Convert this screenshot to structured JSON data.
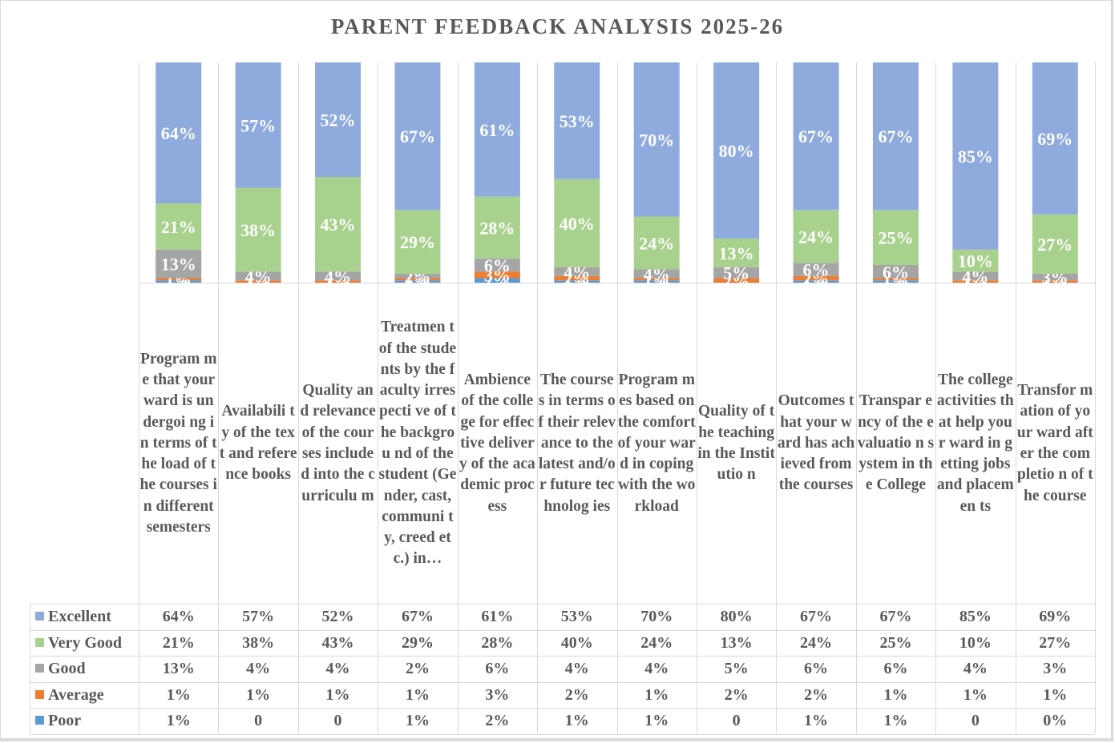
{
  "chart_data": {
    "type": "bar",
    "stacked": true,
    "normalized": true,
    "title": "PARENT FEEDBACK ANALYSIS 2025-26",
    "xlabel": "",
    "ylabel": "",
    "ylim": [
      0,
      100
    ],
    "grid": true,
    "legend": "data-table-left",
    "categories": [
      "Programme that your ward is undergoing in terms of the load of the courses in different semesters",
      "Availability of the text and reference books",
      "Quality and relevance of the courses included into the curriculum",
      "Treatment of the students by the faculty irrespective of the background of the student (Gender, cast, community, creed etc.) in…",
      "Ambience of the college for effective delivery of the academic process",
      "The courses in terms of their relevance to the latest and/or future technologies",
      "Programmes based on the comfort of your ward in coping with the workload",
      "Quality of the teaching in the Institution",
      "Outcomes that your ward has achieved from the courses",
      "Transparency of the evaluation system in the College",
      "The college activities that help your ward in getting jobs and placements",
      "Transformation of your ward after the completion of the course"
    ],
    "category_display": [
      "Program me that your ward is undergoi ng in terms of the load of the courses in different semesters",
      "Availabili ty of the text and reference books",
      "Quality and relevance of the courses included into the curriculu m",
      "Treatmen t of the students by the faculty irrespecti ve of the backgrou nd of the student (Gender, cast, communi ty, creed etc.) in…",
      "Ambience of the college for effective delivery of the academic process",
      "The courses in terms of their relevance to the latest and/or future technolog ies",
      "Program mes based on the comfort of your ward in coping with the workload",
      "Quality of the teaching in the Institutio n",
      "Outcomes that your ward has achieved from the courses",
      "Transpar ency of the evaluatio n system in the College",
      "The college activities that help your ward in getting jobs and placemen ts",
      "Transfor mation of your ward after the completio n of the course"
    ],
    "series": [
      {
        "name": "Excellent",
        "color": "#8faadc",
        "values": [
          64,
          57,
          52,
          67,
          61,
          53,
          70,
          80,
          67,
          67,
          85,
          69
        ],
        "labels": [
          "64%",
          "57%",
          "52%",
          "67%",
          "61%",
          "53%",
          "70%",
          "80%",
          "67%",
          "67%",
          "85%",
          "69%"
        ]
      },
      {
        "name": "Very Good",
        "color": "#a9d18e",
        "values": [
          21,
          38,
          43,
          29,
          28,
          40,
          24,
          13,
          24,
          25,
          10,
          27
        ],
        "labels": [
          "21%",
          "38%",
          "43%",
          "29%",
          "28%",
          "40%",
          "24%",
          "13%",
          "24%",
          "25%",
          "10%",
          "27%"
        ]
      },
      {
        "name": "Good",
        "color": "#a5a5a5",
        "values": [
          13,
          4,
          4,
          2,
          6,
          4,
          4,
          5,
          6,
          6,
          4,
          3
        ],
        "labels": [
          "13%",
          "4%",
          "4%",
          "2%",
          "6%",
          "4%",
          "4%",
          "5%",
          "6%",
          "6%",
          "4%",
          "3%"
        ]
      },
      {
        "name": "Average",
        "color": "#ed7d31",
        "values": [
          1,
          1,
          1,
          1,
          3,
          2,
          1,
          2,
          2,
          1,
          1,
          1
        ],
        "labels": [
          "1%",
          "1%",
          "1%",
          "1%",
          "3%",
          "2%",
          "1%",
          "2%",
          "2%",
          "1%",
          "1%",
          "1%"
        ]
      },
      {
        "name": "Poor",
        "color": "#5b9bd5",
        "values": [
          1,
          0,
          0,
          1,
          2,
          1,
          1,
          0,
          1,
          1,
          0,
          0
        ],
        "labels": [
          "1%",
          "0",
          "0",
          "1%",
          "2%",
          "1%",
          "1%",
          "0",
          "1%",
          "1%",
          "0",
          "0%"
        ]
      }
    ]
  }
}
